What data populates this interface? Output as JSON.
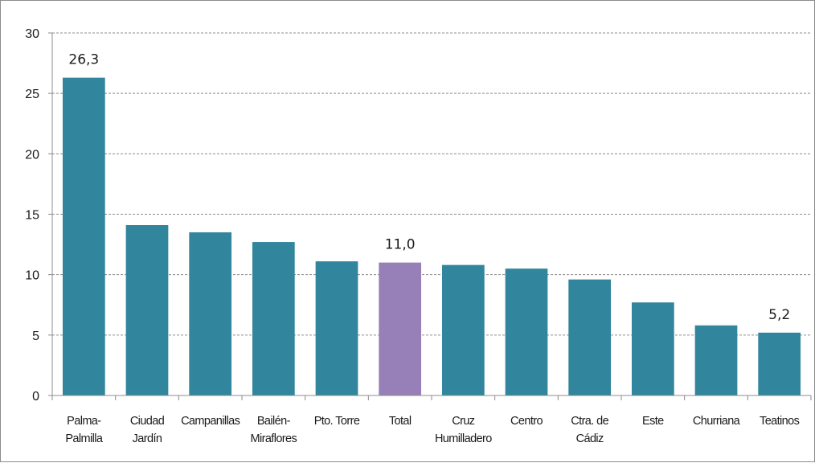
{
  "chart_data": {
    "type": "bar",
    "title": "",
    "xlabel": "",
    "ylabel": "",
    "ylim": [
      0,
      30
    ],
    "yticks": [
      0,
      5,
      10,
      15,
      20,
      25,
      30
    ],
    "grid": "horizontal-dashed",
    "legend": "none",
    "categories": [
      [
        "Palma-",
        "Palmilla"
      ],
      [
        "Ciudad",
        "Jardín"
      ],
      [
        "Campanillas"
      ],
      [
        "Bailén-",
        "Miraflores"
      ],
      [
        "Pto. Torre"
      ],
      [
        "Total"
      ],
      [
        "Cruz",
        "Humilladero"
      ],
      [
        "Centro"
      ],
      [
        "Ctra. de",
        "Cádiz"
      ],
      [
        "Este"
      ],
      [
        "Churriana"
      ],
      [
        "Teatinos"
      ]
    ],
    "values": [
      26.3,
      14.1,
      13.5,
      12.7,
      11.1,
      11.0,
      10.8,
      10.5,
      9.6,
      7.7,
      5.8,
      5.2
    ],
    "data_labels": [
      {
        "index": 0,
        "text": "26,3"
      },
      {
        "index": 5,
        "text": "11,0"
      },
      {
        "index": 11,
        "text": "5,2"
      }
    ],
    "colors": {
      "bar": "#31859c",
      "highlight": "#9680b7",
      "highlight_index": 5,
      "grid": "#8c8c8c",
      "axis": "#8c8c8c"
    }
  }
}
